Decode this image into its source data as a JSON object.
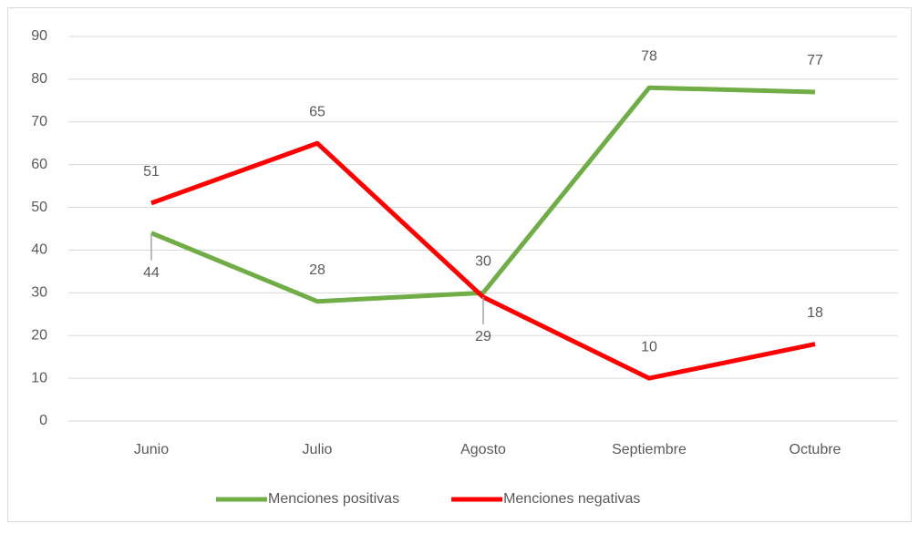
{
  "chart_data": {
    "type": "line",
    "categories": [
      "Junio",
      "Julio",
      "Agosto",
      "Septiembre",
      "Octubre"
    ],
    "series": [
      {
        "name": "Menciones positivas",
        "color": "#70ad47",
        "values": [
          44,
          28,
          30,
          78,
          77
        ]
      },
      {
        "name": "Menciones negativas",
        "color": "#ff0000",
        "values": [
          51,
          65,
          29,
          10,
          18
        ]
      }
    ],
    "ylim": [
      0,
      90
    ],
    "yticks": [
      0,
      10,
      20,
      30,
      40,
      50,
      60,
      70,
      80,
      90
    ],
    "grid": true,
    "legend": "bottom"
  }
}
